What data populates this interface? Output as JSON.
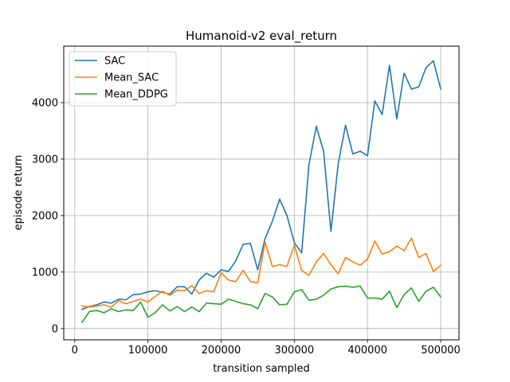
{
  "chart_data": {
    "type": "line",
    "title": "Humanoid-v2 eval_return",
    "xlabel": "transition sampled",
    "ylabel": "episode return",
    "xlim": [
      -15000,
      525000
    ],
    "ylim": [
      -200,
      5000
    ],
    "xticks": [
      0,
      100000,
      200000,
      300000,
      400000,
      500000
    ],
    "xtick_labels": [
      "0",
      "100000",
      "200000",
      "300000",
      "400000",
      "500000"
    ],
    "yticks": [
      0,
      1000,
      2000,
      3000,
      4000
    ],
    "ytick_labels": [
      "0",
      "1000",
      "2000",
      "3000",
      "4000"
    ],
    "grid": true,
    "legend_position": "top-left",
    "x": [
      10000,
      20000,
      30000,
      40000,
      50000,
      60000,
      70000,
      80000,
      90000,
      100000,
      110000,
      120000,
      130000,
      140000,
      150000,
      160000,
      170000,
      180000,
      190000,
      200000,
      210000,
      220000,
      230000,
      240000,
      250000,
      260000,
      270000,
      280000,
      290000,
      300000,
      310000,
      320000,
      330000,
      340000,
      350000,
      360000,
      370000,
      380000,
      390000,
      400000,
      410000,
      420000,
      430000,
      440000,
      450000,
      460000,
      470000,
      480000,
      490000,
      500000
    ],
    "series": [
      {
        "name": "SAC",
        "color": "#1f77b4",
        "values": [
          340,
          390,
          420,
          470,
          450,
          520,
          510,
          600,
          610,
          650,
          670,
          640,
          610,
          740,
          740,
          610,
          860,
          980,
          910,
          1040,
          1010,
          1200,
          1490,
          1510,
          1040,
          1590,
          1900,
          2290,
          2000,
          1520,
          1340,
          2900,
          3580,
          3140,
          1720,
          2920,
          3600,
          3090,
          3140,
          3060,
          4030,
          3790,
          4660,
          3710,
          4520,
          4240,
          4280,
          4620,
          4740,
          4240
        ]
      },
      {
        "name": "Mean_SAC",
        "color": "#ff7f0e",
        "values": [
          400,
          380,
          400,
          420,
          380,
          490,
          440,
          480,
          520,
          470,
          570,
          660,
          590,
          680,
          670,
          760,
          620,
          670,
          650,
          990,
          860,
          830,
          1030,
          830,
          810,
          1530,
          1100,
          1130,
          1100,
          1480,
          1030,
          940,
          1180,
          1330,
          1130,
          970,
          1260,
          1180,
          1120,
          1230,
          1550,
          1320,
          1360,
          1460,
          1380,
          1600,
          1260,
          1330,
          1010,
          1120
        ]
      },
      {
        "name": "Mean_DDPG",
        "color": "#2ca02c",
        "values": [
          110,
          300,
          320,
          280,
          350,
          300,
          330,
          320,
          470,
          200,
          280,
          420,
          310,
          390,
          300,
          380,
          300,
          450,
          440,
          430,
          520,
          480,
          440,
          420,
          350,
          620,
          560,
          420,
          430,
          650,
          690,
          500,
          520,
          590,
          700,
          740,
          750,
          730,
          750,
          540,
          540,
          520,
          660,
          370,
          600,
          720,
          480,
          660,
          730,
          560
        ]
      }
    ]
  }
}
